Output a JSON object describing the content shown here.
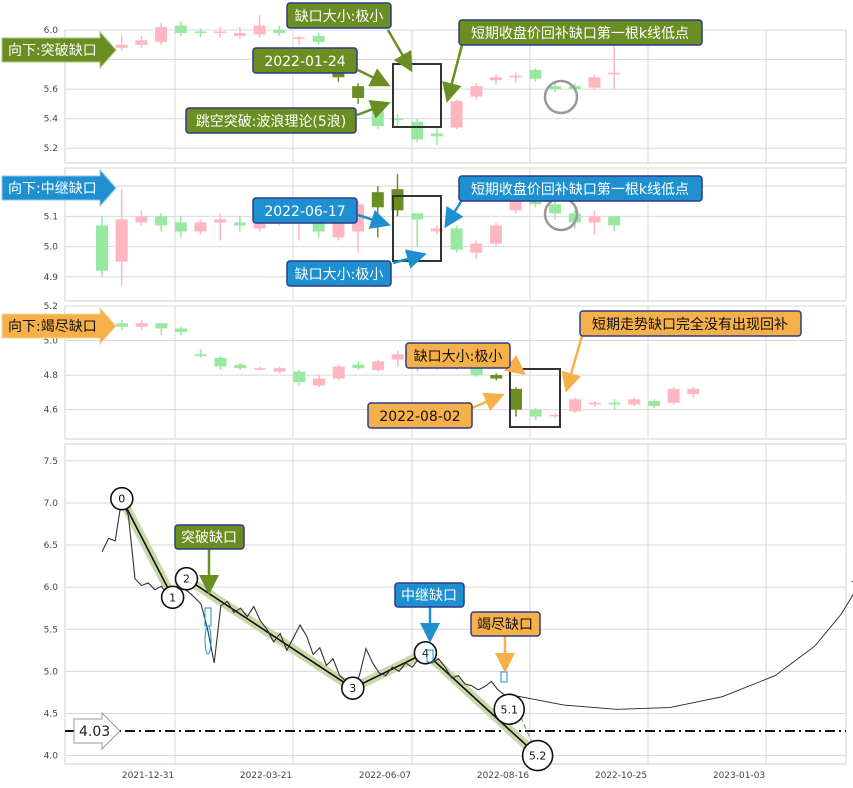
{
  "colors": {
    "up": "#ffb6c1",
    "down": "#98e8a0",
    "gap_down": "#6b8e23",
    "green_tag": "#6b8e23",
    "blue_tag": "#1e90d0",
    "orange_tag": "#f5b04a",
    "trend": "#c8d8a8",
    "grid": "#d8d8d8"
  },
  "panels": [
    {
      "id": "breakaway",
      "tag": "向下:突破缺口",
      "tag_color": "green_tag",
      "ylim": [
        5.1,
        6.0
      ],
      "yticks": [
        "5.2",
        "5.4",
        "5.6",
        "5.8",
        "6.0"
      ],
      "notes": {
        "gap_size": "缺口大小:极小",
        "date": "2022-01-24",
        "theory": "跳空突破:波浪理论(5浪)",
        "low_point": "短期收盘价回补缺口第一根k线低点"
      },
      "candles": [
        [
          5.9,
          5.92,
          5.88,
          5.94
        ],
        [
          5.88,
          5.9,
          5.86,
          5.97
        ],
        [
          5.9,
          5.93,
          5.88,
          5.96
        ],
        [
          5.92,
          6.02,
          5.9,
          6.05
        ],
        [
          6.03,
          5.98,
          5.96,
          6.06
        ],
        [
          5.99,
          5.98,
          5.95,
          6.01
        ],
        [
          5.98,
          5.99,
          5.95,
          6.02
        ],
        [
          5.96,
          5.98,
          5.94,
          6.02
        ],
        [
          5.97,
          6.03,
          5.95,
          6.1
        ],
        [
          6.0,
          5.98,
          5.96,
          6.03
        ],
        [
          5.95,
          5.95,
          5.9,
          5.96
        ],
        [
          5.96,
          5.92,
          5.9,
          5.98
        ],
        [
          5.86,
          5.68,
          5.65,
          5.88
        ],
        [
          5.62,
          5.54,
          5.5,
          5.64
        ],
        [
          5.48,
          5.35,
          5.33,
          5.5
        ],
        [
          5.4,
          5.39,
          5.35,
          5.43
        ],
        [
          5.38,
          5.26,
          5.24,
          5.4
        ],
        [
          5.3,
          5.28,
          5.22,
          5.35
        ],
        [
          5.34,
          5.52,
          5.33,
          5.53
        ],
        [
          5.55,
          5.62,
          5.53,
          5.64
        ],
        [
          5.66,
          5.68,
          5.63,
          5.7
        ],
        [
          5.68,
          5.69,
          5.64,
          5.71
        ],
        [
          5.73,
          5.67,
          5.65,
          5.74
        ],
        [
          5.62,
          5.6,
          5.58,
          5.65
        ],
        [
          5.62,
          5.6,
          5.58,
          5.64
        ],
        [
          5.61,
          5.68,
          5.6,
          5.7
        ],
        [
          5.7,
          5.71,
          5.6,
          5.95
        ]
      ]
    },
    {
      "id": "continuation",
      "tag": "向下:中继缺口",
      "tag_color": "blue_tag",
      "ylim": [
        4.82,
        5.26
      ],
      "yticks": [
        "4.9",
        "5.0",
        "5.1",
        "5.2"
      ],
      "notes": {
        "date": "2022-06-17",
        "gap_size": "缺口大小:极小",
        "low_point": "短期收盘价回补缺口第一根k线低点"
      },
      "candles": [
        [
          5.07,
          4.92,
          4.9,
          5.1
        ],
        [
          4.95,
          5.09,
          4.87,
          5.19
        ],
        [
          5.08,
          5.1,
          5.07,
          5.12
        ],
        [
          5.1,
          5.07,
          5.05,
          5.11
        ],
        [
          5.08,
          5.05,
          5.03,
          5.1
        ],
        [
          5.05,
          5.08,
          5.04,
          5.09
        ],
        [
          5.08,
          5.09,
          5.02,
          5.11
        ],
        [
          5.08,
          5.07,
          5.05,
          5.1
        ],
        [
          5.06,
          5.13,
          5.05,
          5.14
        ],
        [
          5.1,
          5.11,
          5.07,
          5.13
        ],
        [
          5.1,
          5.13,
          5.02,
          5.14
        ],
        [
          5.11,
          5.05,
          5.03,
          5.12
        ],
        [
          5.03,
          5.14,
          5.02,
          5.15
        ],
        [
          5.05,
          5.14,
          4.98,
          5.15
        ],
        [
          5.13,
          5.18,
          5.03,
          5.2
        ],
        [
          5.19,
          5.12,
          5.1,
          5.24
        ],
        [
          5.11,
          5.09,
          5.0,
          5.11
        ],
        [
          5.05,
          5.06,
          5.04,
          5.07
        ],
        [
          5.06,
          4.99,
          4.98,
          5.07
        ],
        [
          4.98,
          5.01,
          4.96,
          5.02
        ],
        [
          5.01,
          5.07,
          5.0,
          5.08
        ],
        [
          5.12,
          5.18,
          5.11,
          5.19
        ],
        [
          5.18,
          5.14,
          5.13,
          5.19
        ],
        [
          5.14,
          5.11,
          5.09,
          5.15
        ],
        [
          5.11,
          5.08,
          5.06,
          5.12
        ],
        [
          5.08,
          5.1,
          5.04,
          5.12
        ],
        [
          5.1,
          5.07,
          5.05,
          5.1
        ]
      ]
    },
    {
      "id": "exhaustion",
      "tag": "向下:竭尽缺口",
      "tag_color": "orange_tag",
      "ylim": [
        4.43,
        5.2
      ],
      "yticks": [
        "4.6",
        "4.8",
        "5.0",
        "5.2"
      ],
      "notes": {
        "gap_size": "缺口大小:极小",
        "date": "2022-08-02",
        "no_fill": "短期走势缺口完全没有出现回补"
      },
      "candles": [
        [
          5.1,
          5.08,
          5.06,
          5.12
        ],
        [
          5.08,
          5.1,
          5.06,
          5.12
        ],
        [
          5.1,
          5.07,
          5.03,
          5.1
        ],
        [
          5.07,
          5.05,
          5.03,
          5.08
        ],
        [
          4.92,
          4.91,
          4.9,
          4.95
        ],
        [
          4.9,
          4.85,
          4.83,
          4.91
        ],
        [
          4.86,
          4.84,
          4.83,
          4.87
        ],
        [
          4.84,
          4.84,
          4.83,
          4.85
        ],
        [
          4.82,
          4.84,
          4.81,
          4.85
        ],
        [
          4.82,
          4.76,
          4.74,
          4.83
        ],
        [
          4.74,
          4.78,
          4.73,
          4.8
        ],
        [
          4.78,
          4.85,
          4.77,
          4.86
        ],
        [
          4.86,
          4.84,
          4.83,
          4.88
        ],
        [
          4.83,
          4.88,
          4.82,
          4.89
        ],
        [
          4.89,
          4.92,
          4.85,
          4.94
        ],
        [
          4.9,
          4.84,
          4.82,
          4.91
        ],
        [
          4.84,
          4.86,
          4.83,
          4.87
        ],
        [
          4.86,
          4.85,
          4.83,
          4.88
        ],
        [
          4.86,
          4.8,
          4.79,
          4.87
        ],
        [
          4.8,
          4.78,
          4.77,
          4.81
        ],
        [
          4.72,
          4.6,
          4.56,
          4.73
        ],
        [
          4.6,
          4.56,
          4.54,
          4.61
        ],
        [
          4.57,
          4.57,
          4.55,
          4.58
        ],
        [
          4.59,
          4.66,
          4.58,
          4.67
        ],
        [
          4.63,
          4.64,
          4.62,
          4.65
        ],
        [
          4.64,
          4.63,
          4.6,
          4.66
        ],
        [
          4.63,
          4.66,
          4.62,
          4.67
        ],
        [
          4.65,
          4.62,
          4.61,
          4.66
        ],
        [
          4.64,
          4.72,
          4.63,
          4.73
        ],
        [
          4.69,
          4.72,
          4.67,
          4.73
        ]
      ]
    }
  ],
  "chart_data": {
    "type": "line",
    "ylim": [
      3.9,
      7.7
    ],
    "yticks": [
      "4.0",
      "4.5",
      "5.0",
      "5.5",
      "6.0",
      "6.5",
      "7.0",
      "7.5"
    ],
    "xticks": [
      "2021-12-31",
      "2022-03-21",
      "2022-06-07",
      "2022-08-16",
      "2022-10-25",
      "2023-01-03"
    ],
    "support_level": "4.03",
    "gap_labels": {
      "breakaway": "突破缺口",
      "continuation": "中继缺口",
      "exhaustion": "竭尽缺口"
    },
    "price_series": [
      [
        0.0,
        6.42
      ],
      [
        1.0,
        6.58
      ],
      [
        2.0,
        6.55
      ],
      [
        3.0,
        7.05
      ],
      [
        4.0,
        6.85
      ],
      [
        5.0,
        6.1
      ],
      [
        6.0,
        6.02
      ],
      [
        7.0,
        6.05
      ],
      [
        8.0,
        5.97
      ],
      [
        9.0,
        6.01
      ],
      [
        10.0,
        5.9
      ],
      [
        11.0,
        5.87
      ],
      [
        12.0,
        6.0
      ],
      [
        13.0,
        5.95
      ],
      [
        14.0,
        5.88
      ],
      [
        15.0,
        5.8
      ],
      [
        16.0,
        5.5
      ],
      [
        17.0,
        5.1
      ],
      [
        18.0,
        5.78
      ],
      [
        19.0,
        5.83
      ],
      [
        20.0,
        5.7
      ],
      [
        21.0,
        5.75
      ],
      [
        22.0,
        5.65
      ],
      [
        23.0,
        5.77
      ],
      [
        24.0,
        5.6
      ],
      [
        25.0,
        5.5
      ],
      [
        26.0,
        5.35
      ],
      [
        27.0,
        5.45
      ],
      [
        28.0,
        5.25
      ],
      [
        29.0,
        5.4
      ],
      [
        30.0,
        5.55
      ],
      [
        31.0,
        5.42
      ],
      [
        32.0,
        5.2
      ],
      [
        33.0,
        5.28
      ],
      [
        34.0,
        5.07
      ],
      [
        35.0,
        5.15
      ],
      [
        36.0,
        4.95
      ],
      [
        37.0,
        4.88
      ],
      [
        38.0,
        4.8
      ],
      [
        39.0,
        4.95
      ],
      [
        40.0,
        5.27
      ],
      [
        41.0,
        5.1
      ],
      [
        42.0,
        4.98
      ],
      [
        43.0,
        4.95
      ],
      [
        44.0,
        5.05
      ],
      [
        45.0,
        5.0
      ],
      [
        46.0,
        5.1
      ],
      [
        47.0,
        5.05
      ],
      [
        48.0,
        5.15
      ],
      [
        49.0,
        5.22
      ],
      [
        50.0,
        5.1
      ],
      [
        51.0,
        5.15
      ],
      [
        52.0,
        5.05
      ],
      [
        53.0,
        4.92
      ],
      [
        54.0,
        4.95
      ],
      [
        55.0,
        4.85
      ],
      [
        56.0,
        4.83
      ],
      [
        57.0,
        4.78
      ],
      [
        58.0,
        4.82
      ],
      [
        59.0,
        4.88
      ],
      [
        60.0,
        4.78
      ],
      [
        61.0,
        4.72
      ],
      [
        62.0,
        4.73
      ]
    ],
    "wave_points": [
      {
        "label": "0",
        "x": 3.0,
        "y": 7.05
      },
      {
        "label": "1",
        "x": 10.7,
        "y": 5.88
      },
      {
        "label": "2",
        "x": 12.8,
        "y": 6.1
      },
      {
        "label": "3",
        "x": 38.0,
        "y": 4.8
      },
      {
        "label": "4",
        "x": 49.0,
        "y": 5.22
      },
      {
        "label": "5.1",
        "x": 61.7,
        "y": 4.55
      },
      {
        "label": "5.2",
        "x": 66.0,
        "y": 4.0
      }
    ],
    "projection_curve": [
      [
        62.0,
        4.72
      ],
      [
        70.0,
        4.6
      ],
      [
        78.0,
        4.55
      ],
      [
        86.0,
        4.57
      ],
      [
        94.0,
        4.7
      ],
      [
        102.0,
        4.95
      ],
      [
        108.0,
        5.3
      ],
      [
        112.0,
        5.68
      ],
      [
        114.5,
        6.0
      ]
    ]
  }
}
